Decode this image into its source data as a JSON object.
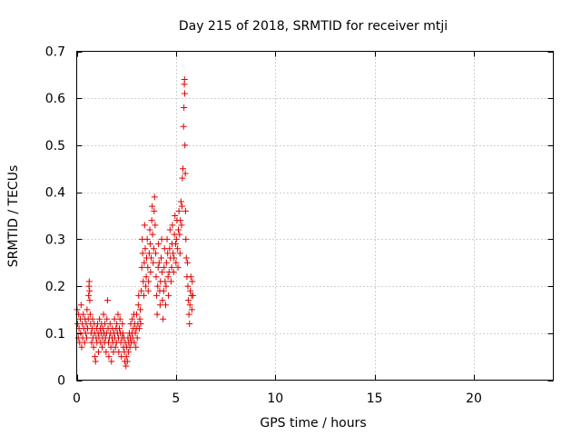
{
  "chart_data": {
    "type": "scatter",
    "title": "Day 215 of 2018, SRMTID for receiver mtji",
    "xlabel": "GPS time / hours",
    "ylabel": "SRMTID / TECUs",
    "xlim": [
      0,
      24
    ],
    "ylim": [
      0,
      0.7
    ],
    "xticks": [
      0,
      5,
      10,
      15,
      20
    ],
    "xtick_labels": [
      "0",
      "5",
      "10",
      "15",
      "20"
    ],
    "yticks": [
      0,
      0.1,
      0.2,
      0.3,
      0.4,
      0.5,
      0.6,
      0.7
    ],
    "ytick_labels": [
      "0",
      "0.1",
      "0.2",
      "0.3",
      "0.4",
      "0.5",
      "0.6",
      "0.7"
    ],
    "grid": true,
    "marker": "plus",
    "color": "#e00000",
    "series": [
      {
        "name": "SRMTID",
        "points": [
          [
            0.02,
            0.15
          ],
          [
            0.05,
            0.12
          ],
          [
            0.08,
            0.09
          ],
          [
            0.1,
            0.14
          ],
          [
            0.12,
            0.11
          ],
          [
            0.15,
            0.08
          ],
          [
            0.18,
            0.13
          ],
          [
            0.2,
            0.1
          ],
          [
            0.22,
            0.16
          ],
          [
            0.25,
            0.07
          ],
          [
            0.28,
            0.12
          ],
          [
            0.3,
            0.09
          ],
          [
            0.33,
            0.14
          ],
          [
            0.36,
            0.11
          ],
          [
            0.4,
            0.08
          ],
          [
            0.42,
            0.13
          ],
          [
            0.45,
            0.1
          ],
          [
            0.48,
            0.12
          ],
          [
            0.5,
            0.09
          ],
          [
            0.52,
            0.15
          ],
          [
            0.55,
            0.11
          ],
          [
            0.58,
            0.13
          ],
          [
            0.6,
            0.18
          ],
          [
            0.62,
            0.2
          ],
          [
            0.63,
            0.21
          ],
          [
            0.65,
            0.19
          ],
          [
            0.66,
            0.17
          ],
          [
            0.68,
            0.14
          ],
          [
            0.7,
            0.12
          ],
          [
            0.72,
            0.1
          ],
          [
            0.75,
            0.08
          ],
          [
            0.78,
            0.11
          ],
          [
            0.8,
            0.13
          ],
          [
            0.82,
            0.09
          ],
          [
            0.85,
            0.07
          ],
          [
            0.88,
            0.12
          ],
          [
            0.9,
            0.1
          ],
          [
            0.92,
            0.05
          ],
          [
            0.95,
            0.04
          ],
          [
            0.98,
            0.09
          ],
          [
            1.0,
            0.11
          ],
          [
            1.02,
            0.08
          ],
          [
            1.05,
            0.12
          ],
          [
            1.08,
            0.1
          ],
          [
            1.1,
            0.06
          ],
          [
            1.12,
            0.09
          ],
          [
            1.15,
            0.13
          ],
          [
            1.18,
            0.11
          ],
          [
            1.2,
            0.08
          ],
          [
            1.22,
            0.1
          ],
          [
            1.25,
            0.12
          ],
          [
            1.28,
            0.07
          ],
          [
            1.3,
            0.09
          ],
          [
            1.32,
            0.11
          ],
          [
            1.35,
            0.14
          ],
          [
            1.38,
            0.1
          ],
          [
            1.4,
            0.08
          ],
          [
            1.42,
            0.12
          ],
          [
            1.45,
            0.09
          ],
          [
            1.48,
            0.06
          ],
          [
            1.5,
            0.1
          ],
          [
            1.52,
            0.13
          ],
          [
            1.55,
            0.17
          ],
          [
            1.58,
            0.11
          ],
          [
            1.6,
            0.08
          ],
          [
            1.62,
            0.05
          ],
          [
            1.65,
            0.09
          ],
          [
            1.68,
            0.12
          ],
          [
            1.7,
            0.1
          ],
          [
            1.72,
            0.07
          ],
          [
            1.75,
            0.04
          ],
          [
            1.78,
            0.09
          ],
          [
            1.8,
            0.11
          ],
          [
            1.82,
            0.08
          ],
          [
            1.85,
            0.06
          ],
          [
            1.88,
            0.1
          ],
          [
            1.9,
            0.13
          ],
          [
            1.92,
            0.09
          ],
          [
            1.95,
            0.07
          ],
          [
            1.98,
            0.11
          ],
          [
            2.0,
            0.08
          ],
          [
            2.02,
            0.12
          ],
          [
            2.05,
            0.1
          ],
          [
            2.08,
            0.14
          ],
          [
            2.1,
            0.09
          ],
          [
            2.12,
            0.06
          ],
          [
            2.15,
            0.11
          ],
          [
            2.18,
            0.13
          ],
          [
            2.2,
            0.1
          ],
          [
            2.22,
            0.08
          ],
          [
            2.25,
            0.05
          ],
          [
            2.28,
            0.09
          ],
          [
            2.3,
            0.12
          ],
          [
            2.32,
            0.1
          ],
          [
            2.35,
            0.07
          ],
          [
            2.38,
            0.09
          ],
          [
            2.4,
            0.06
          ],
          [
            2.42,
            0.04
          ],
          [
            2.45,
            0.08
          ],
          [
            2.48,
            0.03
          ],
          [
            2.5,
            0.05
          ],
          [
            2.52,
            0.07
          ],
          [
            2.55,
            0.04
          ],
          [
            2.58,
            0.09
          ],
          [
            2.6,
            0.06
          ],
          [
            2.62,
            0.08
          ],
          [
            2.65,
            0.1
          ],
          [
            2.68,
            0.07
          ],
          [
            2.7,
            0.09
          ],
          [
            2.72,
            0.12
          ],
          [
            2.75,
            0.08
          ],
          [
            2.78,
            0.1
          ],
          [
            2.8,
            0.13
          ],
          [
            2.82,
            0.09
          ],
          [
            2.85,
            0.11
          ],
          [
            2.88,
            0.14
          ],
          [
            2.9,
            0.08
          ],
          [
            2.92,
            0.12
          ],
          [
            2.95,
            0.1
          ],
          [
            2.98,
            0.07
          ],
          [
            3.0,
            0.11
          ],
          [
            3.02,
            0.14
          ],
          [
            3.05,
            0.09
          ],
          [
            3.08,
            0.12
          ],
          [
            3.1,
            0.16
          ],
          [
            3.12,
            0.18
          ],
          [
            3.15,
            0.11
          ],
          [
            3.18,
            0.13
          ],
          [
            3.2,
            0.15
          ],
          [
            3.22,
            0.12
          ],
          [
            3.25,
            0.19
          ],
          [
            3.28,
            0.24
          ],
          [
            3.3,
            0.3
          ],
          [
            3.32,
            0.27
          ],
          [
            3.35,
            0.21
          ],
          [
            3.38,
            0.18
          ],
          [
            3.4,
            0.25
          ],
          [
            3.42,
            0.33
          ],
          [
            3.45,
            0.28
          ],
          [
            3.48,
            0.2
          ],
          [
            3.5,
            0.22
          ],
          [
            3.52,
            0.26
          ],
          [
            3.55,
            0.3
          ],
          [
            3.58,
            0.24
          ],
          [
            3.6,
            0.19
          ],
          [
            3.62,
            0.21
          ],
          [
            3.65,
            0.27
          ],
          [
            3.68,
            0.32
          ],
          [
            3.7,
            0.29
          ],
          [
            3.72,
            0.23
          ],
          [
            3.75,
            0.26
          ],
          [
            3.78,
            0.34
          ],
          [
            3.8,
            0.37
          ],
          [
            3.82,
            0.31
          ],
          [
            3.85,
            0.25
          ],
          [
            3.88,
            0.28
          ],
          [
            3.9,
            0.36
          ],
          [
            3.92,
            0.39
          ],
          [
            3.95,
            0.33
          ],
          [
            3.98,
            0.27
          ],
          [
            4.0,
            0.22
          ],
          [
            4.02,
            0.18
          ],
          [
            4.05,
            0.14
          ],
          [
            4.08,
            0.2
          ],
          [
            4.1,
            0.24
          ],
          [
            4.12,
            0.29
          ],
          [
            4.15,
            0.25
          ],
          [
            4.18,
            0.19
          ],
          [
            4.2,
            0.16
          ],
          [
            4.22,
            0.21
          ],
          [
            4.25,
            0.26
          ],
          [
            4.28,
            0.3
          ],
          [
            4.3,
            0.23
          ],
          [
            4.32,
            0.17
          ],
          [
            4.35,
            0.13
          ],
          [
            4.38,
            0.19
          ],
          [
            4.4,
            0.24
          ],
          [
            4.42,
            0.28
          ],
          [
            4.45,
            0.21
          ],
          [
            4.48,
            0.16
          ],
          [
            4.5,
            0.2
          ],
          [
            4.52,
            0.25
          ],
          [
            4.55,
            0.3
          ],
          [
            4.58,
            0.27
          ],
          [
            4.6,
            0.22
          ],
          [
            4.62,
            0.18
          ],
          [
            4.65,
            0.23
          ],
          [
            4.68,
            0.28
          ],
          [
            4.7,
            0.32
          ],
          [
            4.72,
            0.26
          ],
          [
            4.75,
            0.21
          ],
          [
            4.78,
            0.24
          ],
          [
            4.8,
            0.29
          ],
          [
            4.82,
            0.33
          ],
          [
            4.85,
            0.27
          ],
          [
            4.88,
            0.23
          ],
          [
            4.9,
            0.26
          ],
          [
            4.92,
            0.31
          ],
          [
            4.95,
            0.35
          ],
          [
            4.98,
            0.29
          ],
          [
            5.0,
            0.25
          ],
          [
            5.02,
            0.3
          ],
          [
            5.05,
            0.34
          ],
          [
            5.08,
            0.28
          ],
          [
            5.1,
            0.24
          ],
          [
            5.12,
            0.32
          ],
          [
            5.15,
            0.36
          ],
          [
            5.18,
            0.31
          ],
          [
            5.2,
            0.27
          ],
          [
            5.22,
            0.34
          ],
          [
            5.25,
            0.38
          ],
          [
            5.28,
            0.33
          ],
          [
            5.3,
            0.37
          ],
          [
            5.32,
            0.43
          ],
          [
            5.35,
            0.45
          ],
          [
            5.38,
            0.54
          ],
          [
            5.4,
            0.58
          ],
          [
            5.42,
            0.63
          ],
          [
            5.43,
            0.64
          ],
          [
            5.44,
            0.61
          ],
          [
            5.45,
            0.5
          ],
          [
            5.47,
            0.44
          ],
          [
            5.48,
            0.36
          ],
          [
            5.5,
            0.3
          ],
          [
            5.52,
            0.26
          ],
          [
            5.55,
            0.22
          ],
          [
            5.58,
            0.25
          ],
          [
            5.6,
            0.2
          ],
          [
            5.62,
            0.17
          ],
          [
            5.65,
            0.14
          ],
          [
            5.68,
            0.12
          ],
          [
            5.7,
            0.16
          ],
          [
            5.72,
            0.19
          ],
          [
            5.75,
            0.22
          ],
          [
            5.78,
            0.18
          ],
          [
            5.8,
            0.15
          ],
          [
            5.82,
            0.21
          ],
          [
            5.85,
            0.18
          ]
        ]
      }
    ]
  }
}
